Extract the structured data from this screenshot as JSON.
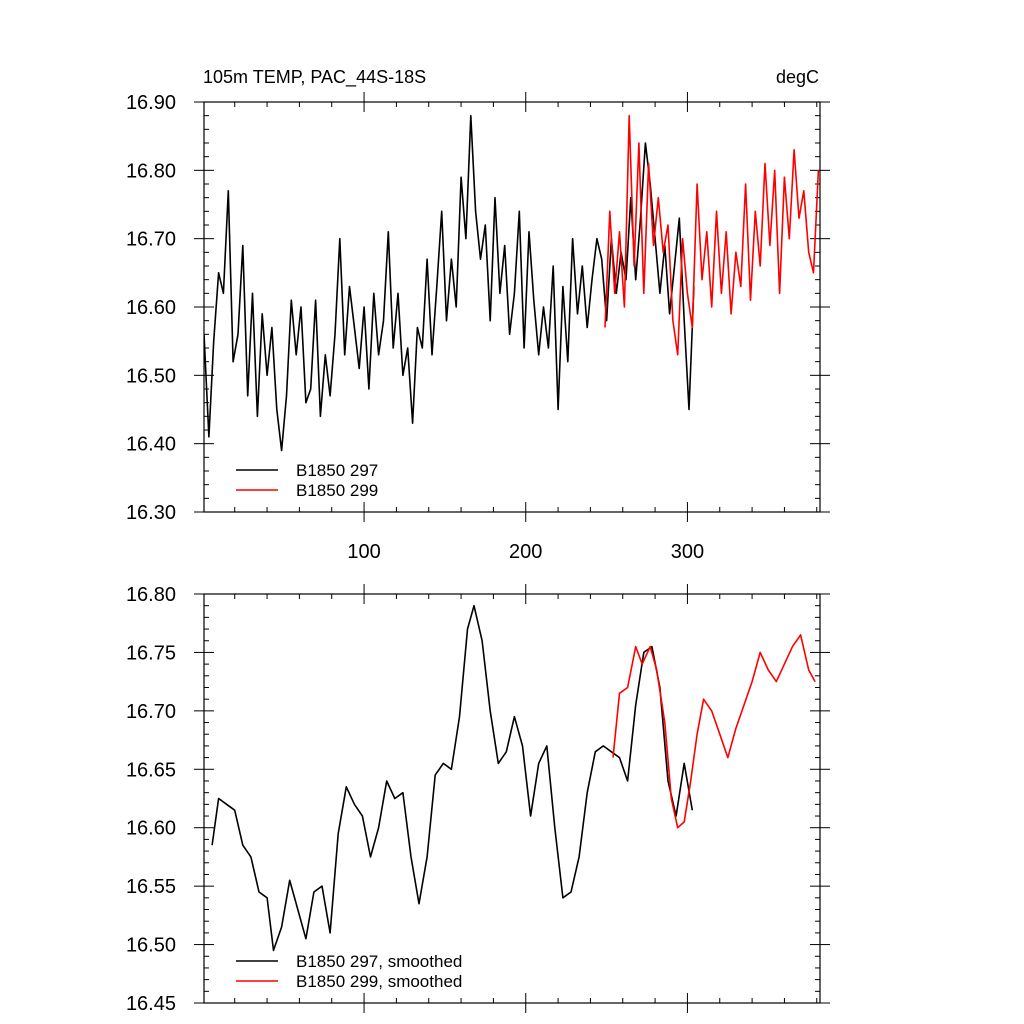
{
  "chart_data": [
    {
      "type": "line",
      "title": "105m TEMP, PAC_44S-18S",
      "units": "degC",
      "xlabel": "",
      "ylabel": "",
      "xlim": [
        1,
        382
      ],
      "ylim": [
        16.3,
        16.9
      ],
      "x_ticks": [
        100,
        200,
        300
      ],
      "y_ticks": [
        16.3,
        16.4,
        16.5,
        16.6,
        16.7,
        16.8,
        16.9
      ],
      "legend": "bottom-left",
      "series": [
        {
          "name": "B1850 297",
          "color": "#000000",
          "x": [
            1,
            4,
            7,
            10,
            13,
            16,
            19,
            22,
            25,
            28,
            31,
            34,
            37,
            40,
            43,
            46,
            49,
            52,
            55,
            58,
            61,
            64,
            67,
            70,
            73,
            76,
            79,
            82,
            85,
            88,
            91,
            94,
            97,
            100,
            103,
            106,
            109,
            112,
            115,
            118,
            121,
            124,
            127,
            130,
            133,
            136,
            139,
            142,
            145,
            148,
            151,
            154,
            157,
            160,
            163,
            166,
            169,
            172,
            175,
            178,
            181,
            184,
            187,
            190,
            193,
            196,
            199,
            202,
            205,
            208,
            211,
            214,
            217,
            220,
            223,
            226,
            229,
            232,
            235,
            238,
            241,
            244,
            247,
            250,
            253,
            256,
            259,
            262,
            265,
            268,
            271,
            274,
            277,
            280,
            283,
            286,
            289,
            292,
            295,
            298,
            301,
            304
          ],
          "values": [
            16.56,
            16.41,
            16.55,
            16.65,
            16.62,
            16.77,
            16.52,
            16.56,
            16.69,
            16.47,
            16.62,
            16.44,
            16.59,
            16.5,
            16.57,
            16.45,
            16.39,
            16.47,
            16.61,
            16.53,
            16.6,
            16.46,
            16.48,
            16.61,
            16.44,
            16.53,
            16.47,
            16.56,
            16.7,
            16.53,
            16.63,
            16.57,
            16.51,
            16.6,
            16.48,
            16.62,
            16.53,
            16.58,
            16.71,
            16.54,
            16.62,
            16.5,
            16.54,
            16.43,
            16.57,
            16.54,
            16.67,
            16.53,
            16.63,
            16.74,
            16.58,
            16.67,
            16.6,
            16.79,
            16.7,
            16.88,
            16.74,
            16.67,
            16.72,
            16.58,
            16.76,
            16.62,
            16.69,
            16.56,
            16.62,
            16.74,
            16.54,
            16.71,
            16.61,
            16.53,
            16.6,
            16.54,
            16.66,
            16.45,
            16.63,
            16.52,
            16.7,
            16.59,
            16.66,
            16.57,
            16.64,
            16.7,
            16.67,
            16.58,
            16.7,
            16.62,
            16.68,
            16.64,
            16.76,
            16.64,
            16.73,
            16.84,
            16.78,
            16.7,
            16.62,
            16.69,
            16.59,
            16.66,
            16.73,
            16.58,
            16.45,
            16.63
          ]
        },
        {
          "name": "B1850 299",
          "color": "#ff0000",
          "x": [
            249,
            252,
            255,
            258,
            261,
            264,
            267,
            270,
            273,
            276,
            279,
            282,
            285,
            288,
            291,
            294,
            297,
            300,
            303,
            306,
            309,
            312,
            315,
            318,
            321,
            324,
            327,
            330,
            333,
            336,
            339,
            342,
            345,
            348,
            351,
            354,
            357,
            360,
            363,
            366,
            369,
            372,
            375,
            378,
            381
          ],
          "values": [
            16.57,
            16.74,
            16.62,
            16.71,
            16.6,
            16.88,
            16.66,
            16.84,
            16.62,
            16.81,
            16.69,
            16.76,
            16.68,
            16.72,
            16.58,
            16.53,
            16.7,
            16.62,
            16.57,
            16.78,
            16.64,
            16.71,
            16.6,
            16.74,
            16.62,
            16.71,
            16.59,
            16.68,
            16.63,
            16.78,
            16.61,
            16.74,
            16.66,
            16.81,
            16.69,
            16.8,
            16.62,
            16.79,
            16.7,
            16.83,
            16.73,
            16.77,
            16.68,
            16.65,
            16.8
          ]
        }
      ]
    },
    {
      "type": "line",
      "title": "",
      "xlabel": "",
      "ylabel": "",
      "xlim": [
        1,
        382
      ],
      "ylim": [
        16.45,
        16.8
      ],
      "x_ticks": [
        100,
        200,
        300
      ],
      "y_ticks": [
        16.45,
        16.5,
        16.55,
        16.6,
        16.65,
        16.7,
        16.75,
        16.8
      ],
      "legend": "bottom-left",
      "series": [
        {
          "name": "B1850 297, smoothed",
          "color": "#000000",
          "x": [
            6,
            10,
            15,
            20,
            25,
            30,
            35,
            40,
            44,
            49,
            54,
            59,
            64,
            69,
            74,
            79,
            84,
            89,
            94,
            99,
            104,
            109,
            114,
            119,
            124,
            129,
            134,
            139,
            144,
            149,
            154,
            159,
            164,
            168,
            173,
            178,
            183,
            188,
            193,
            198,
            203,
            208,
            213,
            218,
            223,
            228,
            233,
            238,
            243,
            248,
            253,
            258,
            263,
            268,
            273,
            278,
            283,
            288,
            293,
            298,
            303
          ],
          "values": [
            16.585,
            16.625,
            16.62,
            16.615,
            16.585,
            16.575,
            16.545,
            16.54,
            16.495,
            16.515,
            16.555,
            16.53,
            16.505,
            16.545,
            16.55,
            16.51,
            16.595,
            16.635,
            16.62,
            16.61,
            16.575,
            16.6,
            16.64,
            16.625,
            16.63,
            16.575,
            16.535,
            16.575,
            16.645,
            16.655,
            16.65,
            16.695,
            16.77,
            16.79,
            16.76,
            16.7,
            16.655,
            16.665,
            16.695,
            16.67,
            16.61,
            16.655,
            16.67,
            16.6,
            16.54,
            16.545,
            16.575,
            16.63,
            16.665,
            16.67,
            16.665,
            16.66,
            16.64,
            16.705,
            16.75,
            16.755,
            16.72,
            16.64,
            16.61,
            16.655,
            16.615
          ]
        },
        {
          "name": "B1850 299, smoothed",
          "color": "#ff0000",
          "x": [
            254,
            258,
            263,
            268,
            272,
            277,
            281,
            286,
            290,
            294,
            298,
            302,
            306,
            310,
            315,
            320,
            325,
            330,
            335,
            340,
            345,
            350,
            355,
            360,
            365,
            370,
            375,
            379
          ],
          "values": [
            16.66,
            16.715,
            16.72,
            16.755,
            16.74,
            16.755,
            16.735,
            16.69,
            16.625,
            16.6,
            16.605,
            16.64,
            16.68,
            16.71,
            16.7,
            16.68,
            16.66,
            16.685,
            16.705,
            16.725,
            16.75,
            16.735,
            16.725,
            16.74,
            16.755,
            16.765,
            16.735,
            16.725
          ]
        }
      ]
    }
  ]
}
